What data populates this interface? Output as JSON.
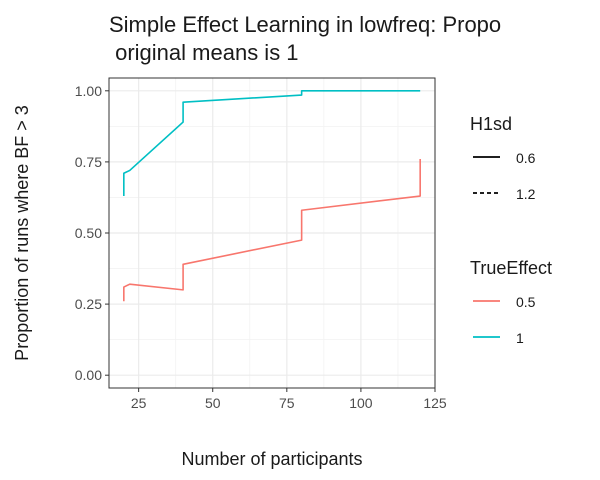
{
  "chart_data": {
    "type": "line",
    "title_lines": [
      "Simple Effect Learning in lowfreq: Propo",
      " original means is 1"
    ],
    "xlabel": "Number of participants",
    "ylabel": "Proportion of runs where BF > 3",
    "xlim": [
      15,
      125
    ],
    "ylim": [
      -0.045,
      1.045
    ],
    "x_ticks": [
      25,
      50,
      75,
      100,
      125
    ],
    "y_ticks": [
      0,
      0.25,
      0.5,
      0.75,
      1
    ],
    "x_tick_labels": [
      "25",
      "50",
      "75",
      "100",
      "125"
    ],
    "y_tick_labels": [
      "0.00",
      "0.25",
      "0.50",
      "0.75",
      "1.00"
    ],
    "grid": true,
    "legend_placement": "right",
    "series": [
      {
        "true_effect": "1",
        "h1sd": "0.6",
        "color": "#00BFC4",
        "linetype": "solid",
        "points": [
          [
            20,
            0.63
          ],
          [
            20,
            0.71
          ],
          [
            22,
            0.72
          ],
          [
            40,
            0.89
          ],
          [
            40,
            0.96
          ],
          [
            80,
            0.985
          ],
          [
            80,
            1.0
          ],
          [
            120,
            1.0
          ]
        ]
      },
      {
        "true_effect": "0.5",
        "h1sd": "0.6",
        "color": "#F8766D",
        "linetype": "solid",
        "points": [
          [
            20,
            0.26
          ],
          [
            20,
            0.31
          ],
          [
            22,
            0.32
          ],
          [
            40,
            0.3
          ],
          [
            40,
            0.39
          ],
          [
            80,
            0.475
          ],
          [
            80,
            0.58
          ],
          [
            120,
            0.63
          ],
          [
            120,
            0.76
          ]
        ]
      }
    ],
    "legends": [
      {
        "title": "H1sd",
        "kind": "linetype",
        "entries": [
          {
            "label": "0.6",
            "linetype": "solid"
          },
          {
            "label": "1.2",
            "linetype": "dashed"
          }
        ]
      },
      {
        "title": "TrueEffect",
        "kind": "color",
        "entries": [
          {
            "label": "0.5",
            "color": "#F8766D"
          },
          {
            "label": "1",
            "color": "#00BFC4"
          }
        ]
      }
    ]
  }
}
